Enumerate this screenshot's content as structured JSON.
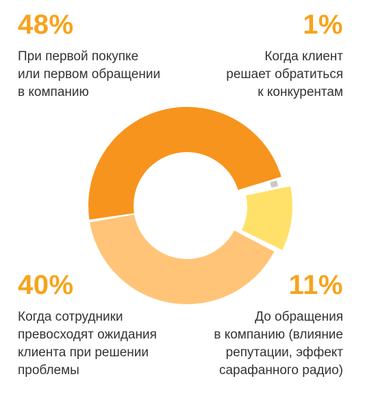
{
  "chart_data": {
    "type": "pie",
    "title": "",
    "donut": true,
    "series": [
      {
        "name": "",
        "values": [
          48,
          1,
          11,
          40
        ]
      }
    ],
    "categories": [
      "При первой покупке\nили первом обращении\nв компанию",
      "Когда клиент\nрешает обратиться\nк конкурентам",
      "До обращения\nв компанию (влияние\nрепутации, эффект\nсарафанного радио)",
      "Когда сотрудники\nпревосходят ожидания\nклиента при решении\nпроблемы"
    ],
    "labels": [
      "48%",
      "1%",
      "11%",
      "40%"
    ],
    "colors": [
      "#F7941D",
      "#C8C8C8",
      "#FFE16A",
      "#FFC478"
    ],
    "legend": "corners",
    "grid": false
  },
  "colors": {
    "accent": "#F7A31C"
  }
}
